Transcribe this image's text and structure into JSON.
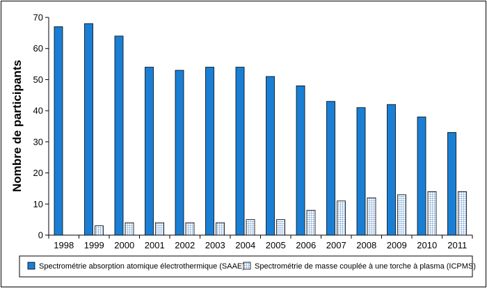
{
  "chart_data": {
    "type": "bar",
    "title": "",
    "xlabel": "",
    "ylabel": "Nombre de participants",
    "ylim": [
      0,
      70
    ],
    "yticks": [
      0,
      10,
      20,
      30,
      40,
      50,
      60,
      70
    ],
    "grid": false,
    "legend_position": "bottom",
    "categories": [
      "1998",
      "1999",
      "2000",
      "2001",
      "2002",
      "2003",
      "2004",
      "2005",
      "2006",
      "2007",
      "2008",
      "2009",
      "2010",
      "2011"
    ],
    "series": [
      {
        "name": "Spectrométrie absorption atomique électrothermique (SAAE)",
        "color": "#1a7fd4",
        "pattern": "solid",
        "values": [
          67,
          68,
          64,
          54,
          53,
          54,
          54,
          51,
          48,
          43,
          41,
          42,
          38,
          33
        ]
      },
      {
        "name": "Spectrométrie de masse couplée à une torche à plasma (ICPMS)",
        "color": "#6fa3d6",
        "pattern": "grid",
        "values": [
          0,
          3,
          4,
          4,
          4,
          4,
          5,
          5,
          8,
          11,
          12,
          13,
          14,
          14
        ]
      }
    ]
  }
}
